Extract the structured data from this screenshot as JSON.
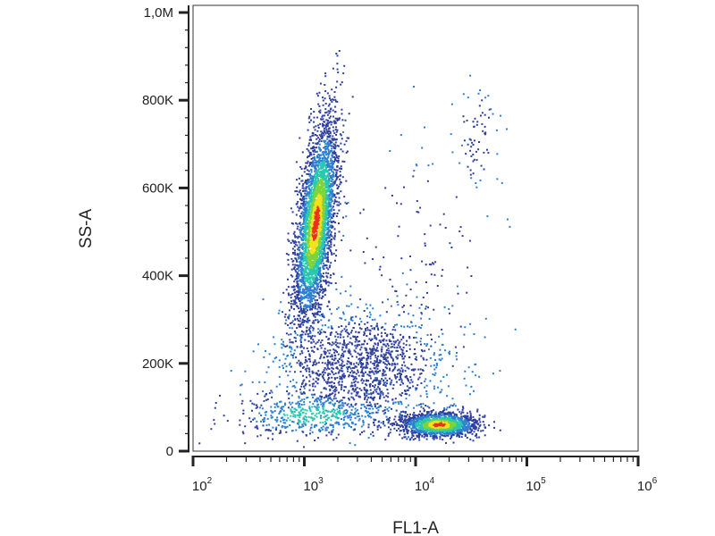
{
  "chart_data": {
    "type": "scatter",
    "style": "density",
    "xlabel": "FL1-A",
    "ylabel": "SS-A",
    "xscale": "log",
    "xlim": [
      100,
      1000000
    ],
    "ylim": [
      0,
      1000000
    ],
    "grid": false,
    "x_ticks": [
      {
        "value": 100,
        "base": "10",
        "exp": "2"
      },
      {
        "value": 1000,
        "base": "10",
        "exp": "3"
      },
      {
        "value": 10000,
        "base": "10",
        "exp": "4"
      },
      {
        "value": 100000,
        "base": "10",
        "exp": "5"
      },
      {
        "value": 1000000,
        "base": "10",
        "exp": "6"
      }
    ],
    "y_ticks": [
      {
        "value": 0,
        "label": "0"
      },
      {
        "value": 200000,
        "label": "200K"
      },
      {
        "value": 400000,
        "label": "400K"
      },
      {
        "value": 600000,
        "label": "600K"
      },
      {
        "value": 800000,
        "label": "800K"
      },
      {
        "value": 1000000,
        "label": "1,0M"
      }
    ],
    "populations": [
      {
        "x_center": 1250,
        "x_spread_decades": 0.08,
        "y_center": 520000,
        "y_spread": 115000,
        "slope_decades_per_100k": 0.045,
        "count": 3600,
        "density": "high"
      },
      {
        "x_center": 16000,
        "x_spread_decades": 0.17,
        "y_center": 62000,
        "y_spread": 14000,
        "slope_decades_per_100k": 0,
        "count": 1500,
        "density": "high"
      },
      {
        "x_center": 3200,
        "x_spread_decades": 0.38,
        "y_center": 200000,
        "y_spread": 60000,
        "slope_decades_per_100k": 0,
        "count": 1300,
        "density": "low"
      },
      {
        "x_center": 1200,
        "x_spread_decades": 0.35,
        "y_center": 85000,
        "y_spread": 25000,
        "slope_decades_per_100k": 0,
        "count": 500,
        "density": "medium"
      },
      {
        "x_center": 35000,
        "x_spread_decades": 0.1,
        "y_center": 720000,
        "y_spread": 60000,
        "slope_decades_per_100k": 0,
        "count": 70,
        "density": "low"
      },
      {
        "x_center": 10000,
        "x_spread_decades": 0.4,
        "y_center": 400000,
        "y_spread": 150000,
        "slope_decades_per_100k": 0,
        "count": 160,
        "density": "low"
      }
    ],
    "colors": {
      "low": "#2e3f9e",
      "low_mid": "#2f7fd0",
      "mid": "#28c8b0",
      "mid_high": "#7ed23a",
      "high": "#f2e21c",
      "max": "#e8331c"
    }
  }
}
